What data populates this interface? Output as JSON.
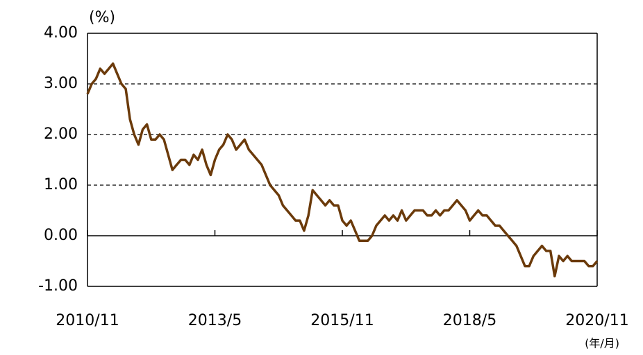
{
  "chart_data": {
    "type": "line",
    "y_unit_label": "(%)",
    "x_unit_label": "(年/月)",
    "categories": [
      "2010/11",
      "2010/12",
      "2011/1",
      "2011/2",
      "2011/3",
      "2011/4",
      "2011/5",
      "2011/6",
      "2011/7",
      "2011/8",
      "2011/9",
      "2011/10",
      "2011/11",
      "2011/12",
      "2012/1",
      "2012/2",
      "2012/3",
      "2012/4",
      "2012/5",
      "2012/6",
      "2012/7",
      "2012/8",
      "2012/9",
      "2012/10",
      "2012/11",
      "2012/12",
      "2013/1",
      "2013/2",
      "2013/3",
      "2013/4",
      "2013/5",
      "2013/6",
      "2013/7",
      "2013/8",
      "2013/9",
      "2013/10",
      "2013/11",
      "2013/12",
      "2014/1",
      "2014/2",
      "2014/3",
      "2014/4",
      "2014/5",
      "2014/6",
      "2014/7",
      "2014/8",
      "2014/9",
      "2014/10",
      "2014/11",
      "2014/12",
      "2015/1",
      "2015/2",
      "2015/3",
      "2015/4",
      "2015/5",
      "2015/6",
      "2015/7",
      "2015/8",
      "2015/9",
      "2015/10",
      "2015/11",
      "2015/12",
      "2016/1",
      "2016/2",
      "2016/3",
      "2016/4",
      "2016/5",
      "2016/6",
      "2016/7",
      "2016/8",
      "2016/9",
      "2016/10",
      "2016/11",
      "2016/12",
      "2017/1",
      "2017/2",
      "2017/3",
      "2017/4",
      "2017/5",
      "2017/6",
      "2017/7",
      "2017/8",
      "2017/9",
      "2017/10",
      "2017/11",
      "2017/12",
      "2018/1",
      "2018/2",
      "2018/3",
      "2018/4",
      "2018/5",
      "2018/6",
      "2018/7",
      "2018/8",
      "2018/9",
      "2018/10",
      "2018/11",
      "2018/12",
      "2019/1",
      "2019/2",
      "2019/3",
      "2019/4",
      "2019/5",
      "2019/6",
      "2019/7",
      "2019/8",
      "2019/9",
      "2019/10",
      "2019/11",
      "2019/12",
      "2020/1",
      "2020/2",
      "2020/3",
      "2020/4",
      "2020/5",
      "2020/6",
      "2020/7",
      "2020/8",
      "2020/9",
      "2020/10",
      "2020/11"
    ],
    "series": [
      {
        "color": "#6b3a0a",
        "values": [
          2.8,
          3.0,
          3.1,
          3.3,
          3.2,
          3.3,
          3.4,
          3.2,
          3.0,
          2.9,
          2.3,
          2.0,
          1.8,
          2.1,
          2.2,
          1.9,
          1.9,
          2.0,
          1.9,
          1.6,
          1.3,
          1.4,
          1.5,
          1.5,
          1.4,
          1.6,
          1.5,
          1.7,
          1.4,
          1.2,
          1.5,
          1.7,
          1.8,
          2.0,
          1.9,
          1.7,
          1.8,
          1.9,
          1.7,
          1.6,
          1.5,
          1.4,
          1.2,
          1.0,
          0.9,
          0.8,
          0.6,
          0.5,
          0.4,
          0.3,
          0.3,
          0.1,
          0.4,
          0.9,
          0.8,
          0.7,
          0.6,
          0.7,
          0.6,
          0.6,
          0.3,
          0.2,
          0.3,
          0.1,
          -0.1,
          -0.1,
          -0.1,
          0.0,
          0.2,
          0.3,
          0.4,
          0.3,
          0.4,
          0.3,
          0.5,
          0.3,
          0.4,
          0.5,
          0.5,
          0.5,
          0.4,
          0.4,
          0.5,
          0.4,
          0.5,
          0.5,
          0.6,
          0.7,
          0.6,
          0.5,
          0.3,
          0.4,
          0.5,
          0.4,
          0.4,
          0.3,
          0.2,
          0.2,
          0.1,
          0.0,
          -0.1,
          -0.2,
          -0.4,
          -0.6,
          -0.6,
          -0.4,
          -0.3,
          -0.2,
          -0.3,
          -0.3,
          -0.8,
          -0.4,
          -0.5,
          -0.4,
          -0.5,
          -0.5,
          -0.5,
          -0.5,
          -0.6,
          -0.6,
          -0.5
        ]
      }
    ],
    "xticks": [
      "2010/11",
      "2013/5",
      "2015/11",
      "2018/5",
      "2020/11"
    ],
    "ylim": [
      -1,
      4
    ],
    "yticks": [
      {
        "value": -1,
        "label": "-1.00"
      },
      {
        "value": 0,
        "label": "0.00"
      },
      {
        "value": 1,
        "label": "1.00"
      },
      {
        "value": 2,
        "label": "2.00"
      },
      {
        "value": 3,
        "label": "3.00"
      },
      {
        "value": 4,
        "label": "4.00"
      }
    ],
    "grid": true
  }
}
